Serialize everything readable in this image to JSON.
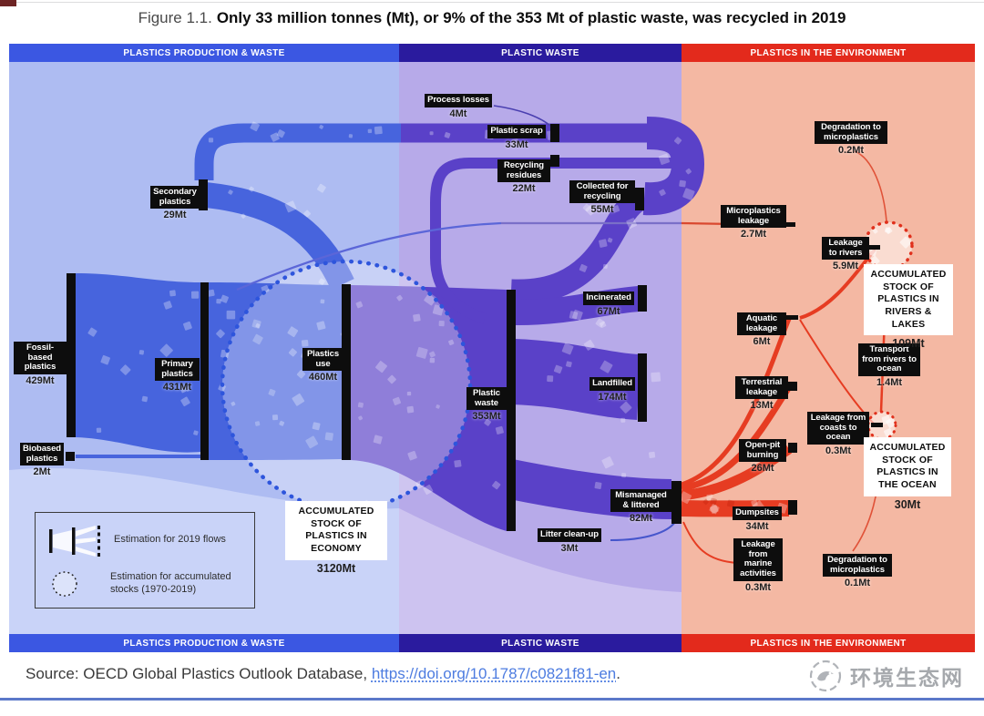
{
  "figure": {
    "label": "Figure 1.1.",
    "title": "Only 33 million tonnes (Mt), or 9% of the 353 Mt of plastic waste, was recycled in 2019"
  },
  "sections": {
    "production": "PLASTICS PRODUCTION & WASTE",
    "waste": "PLASTIC WASTE",
    "environment": "PLASTICS IN THE ENVIRONMENT"
  },
  "nodes": {
    "fossil": {
      "label": "Fossil-based plastics",
      "value": "429Mt"
    },
    "biobased": {
      "label": "Biobased plastics",
      "value": "2Mt"
    },
    "primary": {
      "label": "Primary plastics",
      "value": "431Mt"
    },
    "secondary": {
      "label": "Secondary plastics",
      "value": "29Mt"
    },
    "use": {
      "label": "Plastics use",
      "value": "460Mt"
    },
    "waste": {
      "label": "Plastic waste",
      "value": "353Mt"
    },
    "process_losses": {
      "label": "Process losses",
      "value": "4Mt"
    },
    "scrap": {
      "label": "Plastic scrap",
      "value": "33Mt"
    },
    "residues": {
      "label": "Recycling residues",
      "value": "22Mt"
    },
    "collected": {
      "label": "Collected for recycling",
      "value": "55Mt"
    },
    "incinerated": {
      "label": "Incinerated",
      "value": "67Mt"
    },
    "landfilled": {
      "label": "Landfilled",
      "value": "174Mt"
    },
    "mismanaged": {
      "label": "Mismanaged & littered",
      "value": "82Mt"
    },
    "litter_cleanup": {
      "label": "Litter clean-up",
      "value": "3Mt"
    },
    "micro_leakage": {
      "label": "Microplastics leakage",
      "value": "2.7Mt"
    },
    "aquatic": {
      "label": "Aquatic leakage",
      "value": "6Mt"
    },
    "terrestrial": {
      "label": "Terrestrial leakage",
      "value": "13Mt"
    },
    "openpit": {
      "label": "Open-pit burning",
      "value": "26Mt"
    },
    "dumpsites": {
      "label": "Dumpsites",
      "value": "34Mt"
    },
    "marine": {
      "label": "Leakage from marine activities",
      "value": "0.3Mt"
    },
    "degradation_top": {
      "label": "Degradation to microplastics",
      "value": "0.2Mt"
    },
    "rivers_leak": {
      "label": "Leakage to rivers",
      "value": "5.9Mt"
    },
    "transport": {
      "label": "Transport from rivers to ocean",
      "value": "1.4Mt"
    },
    "coasts": {
      "label": "Leakage from coasts to ocean",
      "value": "0.3Mt"
    },
    "degradation_bottom": {
      "label": "Degradation to microplastics",
      "value": "0.1Mt"
    }
  },
  "stocks": {
    "economy": {
      "label": "ACCUMULATED STOCK OF PLASTICS IN ECONOMY",
      "value": "3120Mt"
    },
    "rivers": {
      "label": "ACCUMULATED STOCK OF PLASTICS IN RIVERS & LAKES",
      "value": "109Mt"
    },
    "ocean": {
      "label": "ACCUMULATED STOCK OF PLASTICS IN THE OCEAN",
      "value": "30Mt"
    }
  },
  "legend": {
    "flow": "Estimation for 2019 flows",
    "stock": "Estimation for accumulated stocks (1970-2019)"
  },
  "source": {
    "prefix": "Source: OECD Global Plastics Outlook Database, ",
    "link_text": "https://doi.org/10.1787/c0821f81-en",
    "suffix": "."
  },
  "watermark": {
    "text": "环境生态网"
  },
  "colors": {
    "header_production": "#3b57e2",
    "header_waste": "#2a1b9e",
    "header_environment": "#e32a1c",
    "bg_production": "#aebcf2",
    "bg_waste": "#b7aae9",
    "bg_environment": "#f4b8a3",
    "flow_blue": "#4764dd",
    "flow_purple": "#5a41c8",
    "flow_red": "#e63c22",
    "node_bar": "#0d0d0d",
    "link_blue": "#4d7ce0",
    "bottom_rule": "#5b78c9"
  },
  "chart_data": {
    "type": "sankey",
    "unit": "Mt",
    "title": "Only 33 million tonnes (Mt), or 9% of the 353 Mt of plastic waste, was recycled in 2019",
    "sections": [
      "PLASTICS PRODUCTION & WASTE",
      "PLASTIC WASTE",
      "PLASTICS IN THE ENVIRONMENT"
    ],
    "nodes": [
      {
        "label": "Fossil-based plastics",
        "value": 429,
        "section": "PLASTICS PRODUCTION & WASTE"
      },
      {
        "label": "Biobased plastics",
        "value": 2,
        "section": "PLASTICS PRODUCTION & WASTE"
      },
      {
        "label": "Primary plastics",
        "value": 431,
        "section": "PLASTICS PRODUCTION & WASTE"
      },
      {
        "label": "Secondary plastics",
        "value": 29,
        "section": "PLASTICS PRODUCTION & WASTE"
      },
      {
        "label": "Plastics use",
        "value": 460,
        "section": "PLASTICS PRODUCTION & WASTE"
      },
      {
        "label": "Plastic waste",
        "value": 353,
        "section": "PLASTIC WASTE"
      },
      {
        "label": "Process losses",
        "value": 4,
        "section": "PLASTIC WASTE"
      },
      {
        "label": "Plastic scrap",
        "value": 33,
        "section": "PLASTIC WASTE"
      },
      {
        "label": "Recycling residues",
        "value": 22,
        "section": "PLASTIC WASTE"
      },
      {
        "label": "Collected for recycling",
        "value": 55,
        "section": "PLASTIC WASTE"
      },
      {
        "label": "Incinerated",
        "value": 67,
        "section": "PLASTIC WASTE"
      },
      {
        "label": "Landfilled",
        "value": 174,
        "section": "PLASTIC WASTE"
      },
      {
        "label": "Mismanaged & littered",
        "value": 82,
        "section": "PLASTIC WASTE"
      },
      {
        "label": "Litter clean-up",
        "value": 3,
        "section": "PLASTIC WASTE"
      },
      {
        "label": "Microplastics leakage",
        "value": 2.7,
        "section": "PLASTICS IN THE ENVIRONMENT"
      },
      {
        "label": "Aquatic leakage",
        "value": 6,
        "section": "PLASTICS IN THE ENVIRONMENT"
      },
      {
        "label": "Terrestrial leakage",
        "value": 13,
        "section": "PLASTICS IN THE ENVIRONMENT"
      },
      {
        "label": "Open-pit burning",
        "value": 26,
        "section": "PLASTICS IN THE ENVIRONMENT"
      },
      {
        "label": "Dumpsites",
        "value": 34,
        "section": "PLASTICS IN THE ENVIRONMENT"
      },
      {
        "label": "Leakage from marine activities",
        "value": 0.3,
        "section": "PLASTICS IN THE ENVIRONMENT"
      },
      {
        "label": "Degradation to microplastics (rivers)",
        "value": 0.2,
        "section": "PLASTICS IN THE ENVIRONMENT"
      },
      {
        "label": "Leakage to rivers",
        "value": 5.9,
        "section": "PLASTICS IN THE ENVIRONMENT"
      },
      {
        "label": "Transport from rivers to ocean",
        "value": 1.4,
        "section": "PLASTICS IN THE ENVIRONMENT"
      },
      {
        "label": "Leakage from coasts to ocean",
        "value": 0.3,
        "section": "PLASTICS IN THE ENVIRONMENT"
      },
      {
        "label": "Degradation to microplastics (ocean)",
        "value": 0.1,
        "section": "PLASTICS IN THE ENVIRONMENT"
      }
    ],
    "links": [
      {
        "source": "Fossil-based plastics",
        "target": "Primary plastics",
        "value": 429
      },
      {
        "source": "Biobased plastics",
        "target": "Primary plastics",
        "value": 2
      },
      {
        "source": "Primary plastics",
        "target": "Plastics use",
        "value": 431
      },
      {
        "source": "Secondary plastics",
        "target": "Plastics use",
        "value": 29
      },
      {
        "source": "Plastics use",
        "target": "Plastic waste",
        "value": 353
      },
      {
        "source": "Plastics use",
        "target": "Microplastics leakage",
        "value": 2.7
      },
      {
        "source": "Plastic waste",
        "target": "Collected for recycling",
        "value": 55
      },
      {
        "source": "Collected for recycling",
        "target": "Plastic scrap",
        "value": 33
      },
      {
        "source": "Collected for recycling",
        "target": "Recycling residues",
        "value": 22
      },
      {
        "source": "Plastic scrap",
        "target": "Process losses",
        "value": 4
      },
      {
        "source": "Plastic scrap",
        "target": "Secondary plastics",
        "value": 29
      },
      {
        "source": "Plastic waste",
        "target": "Incinerated",
        "value": 67
      },
      {
        "source": "Plastic waste",
        "target": "Landfilled",
        "value": 174
      },
      {
        "source": "Plastic waste",
        "target": "Mismanaged & littered",
        "value": 82
      },
      {
        "source": "Mismanaged & littered",
        "target": "Litter clean-up",
        "value": 3
      },
      {
        "source": "Mismanaged & littered",
        "target": "Dumpsites",
        "value": 34
      },
      {
        "source": "Mismanaged & littered",
        "target": "Open-pit burning",
        "value": 26
      },
      {
        "source": "Mismanaged & littered",
        "target": "Terrestrial leakage",
        "value": 13
      },
      {
        "source": "Mismanaged & littered",
        "target": "Aquatic leakage",
        "value": 6
      },
      {
        "source": "Mismanaged & littered",
        "target": "Leakage from marine activities",
        "value": 0.3
      },
      {
        "source": "Aquatic leakage",
        "target": "Leakage to rivers",
        "value": 5.9
      },
      {
        "source": "Leakage to rivers",
        "target": "Degradation to microplastics (rivers)",
        "value": 0.2
      },
      {
        "source": "Accumulated stock of plastics in rivers & lakes",
        "target": "Transport from rivers to ocean",
        "value": 1.4
      },
      {
        "source": "Terrestrial leakage",
        "target": "Leakage from coasts to ocean",
        "value": 0.3
      },
      {
        "source": "Accumulated stock of plastics in the ocean",
        "target": "Degradation to microplastics (ocean)",
        "value": 0.1
      }
    ],
    "stocks": [
      {
        "label": "ACCUMULATED STOCK OF PLASTICS IN ECONOMY",
        "value": 3120,
        "period": "1970-2019"
      },
      {
        "label": "ACCUMULATED STOCK OF PLASTICS IN RIVERS & LAKES",
        "value": 109,
        "period": "1970-2019"
      },
      {
        "label": "ACCUMULATED STOCK OF PLASTICS IN THE OCEAN",
        "value": 30,
        "period": "1970-2019"
      }
    ],
    "legend": [
      "Estimation for 2019 flows",
      "Estimation for accumulated stocks (1970-2019)"
    ]
  }
}
